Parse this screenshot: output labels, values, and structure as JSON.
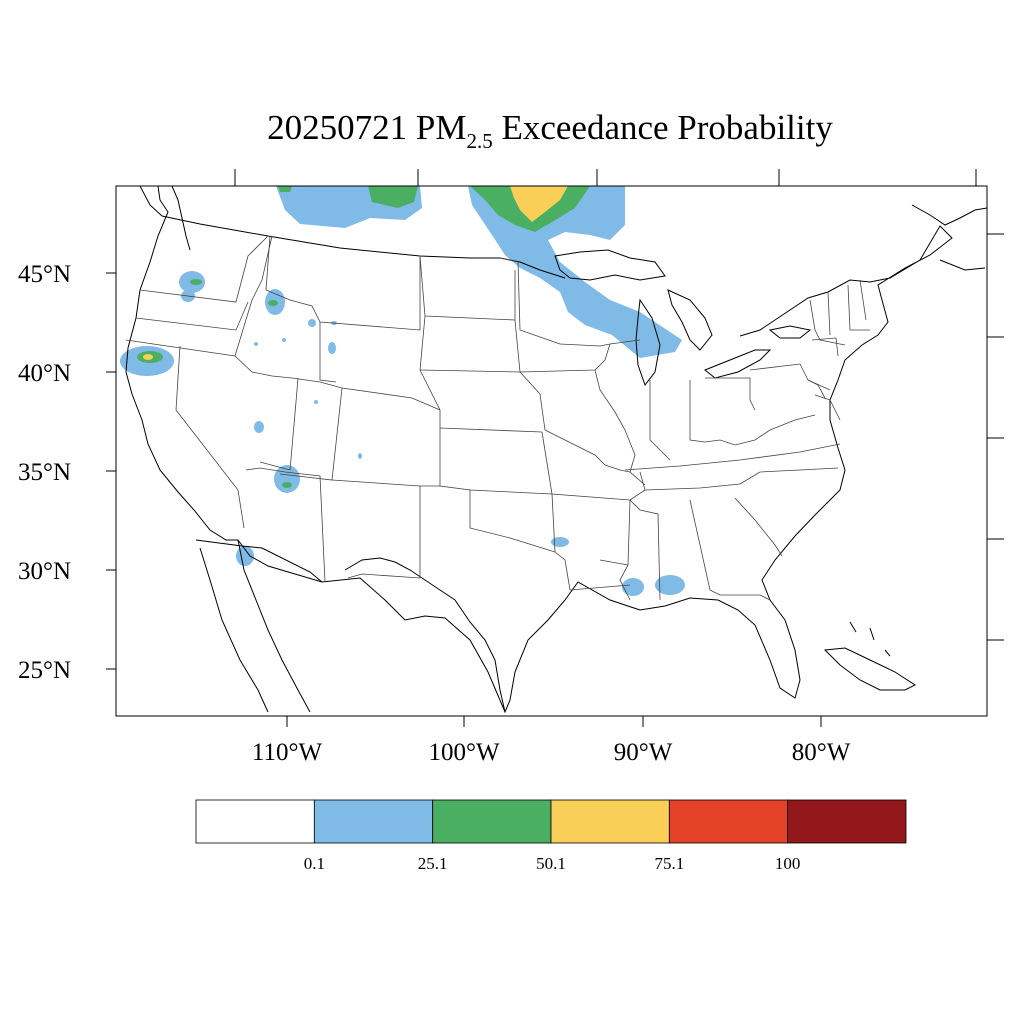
{
  "title": {
    "prefix": "20250721 PM",
    "subscript": "2.5",
    "suffix": " Exceedance Probability"
  },
  "lat_labels": [
    "45°N",
    "40°N",
    "35°N",
    "30°N",
    "25°N"
  ],
  "lon_labels": [
    "110°W",
    "100°W",
    "90°W",
    "80°W"
  ],
  "colorbar": {
    "colors": [
      "#ffffff",
      "#7fbbe6",
      "#4aaf62",
      "#f9cf57",
      "#e34229",
      "#93181c"
    ],
    "labels": [
      "0.1",
      "25.1",
      "50.1",
      "75.1",
      "100"
    ]
  }
}
